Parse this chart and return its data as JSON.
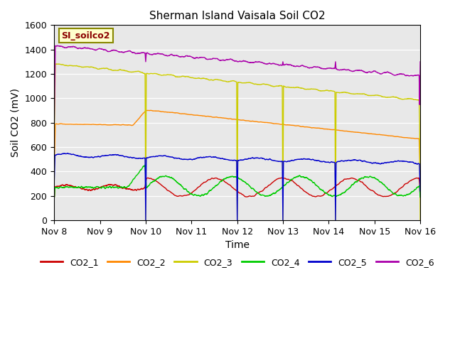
{
  "title": "Sherman Island Vaisala Soil CO2",
  "xlabel": "Time",
  "ylabel": "Soil CO2 (mV)",
  "ylim": [
    0,
    1600
  ],
  "bg_color": "#e8e8e8",
  "watermark_text": "SI_soilco2",
  "watermark_color": "#8b0000",
  "watermark_bg": "#ffffcc",
  "xtick_labels": [
    "Nov 8",
    "Nov 9",
    "Nov 10",
    "Nov 11",
    "Nov 12",
    "Nov 13",
    "Nov 14",
    "Nov 15",
    "Nov 16"
  ],
  "ytick_values": [
    0,
    200,
    400,
    600,
    800,
    1000,
    1200,
    1400,
    1600
  ],
  "colors": {
    "CO2_1": "#cc0000",
    "CO2_2": "#ff8800",
    "CO2_3": "#cccc00",
    "CO2_4": "#00cc00",
    "CO2_5": "#0000cc",
    "CO2_6": "#aa00aa"
  },
  "line_width": 1.0,
  "yellow_spike_ts": [
    2.0,
    4.0,
    5.0,
    6.15,
    8.0
  ],
  "blue_spike_ts": [
    2.0,
    4.0,
    5.0,
    6.15
  ],
  "purple_spike_ts": [
    2.0,
    4.0,
    5.0,
    6.15,
    8.0
  ]
}
